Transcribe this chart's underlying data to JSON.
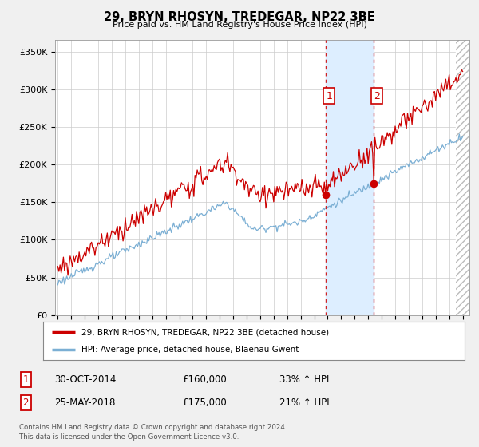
{
  "title": "29, BRYN RHOSYN, TREDEGAR, NP22 3BE",
  "subtitle": "Price paid vs. HM Land Registry's House Price Index (HPI)",
  "ylabel_ticks": [
    "£0",
    "£50K",
    "£100K",
    "£150K",
    "£200K",
    "£250K",
    "£300K",
    "£350K"
  ],
  "ytick_values": [
    0,
    50000,
    100000,
    150000,
    200000,
    250000,
    300000,
    350000
  ],
  "ylim": [
    0,
    365000
  ],
  "xlim_start": 1994.8,
  "xlim_end": 2025.5,
  "legend_line1": "29, BRYN RHOSYN, TREDEGAR, NP22 3BE (detached house)",
  "legend_line2": "HPI: Average price, detached house, Blaenau Gwent",
  "line1_color": "#cc0000",
  "line2_color": "#7bafd4",
  "shade_color": "#ddeeff",
  "transaction1_date": 2014.83,
  "transaction2_date": 2018.38,
  "transaction1_price": 160000,
  "transaction2_price": 175000,
  "footer": "Contains HM Land Registry data © Crown copyright and database right 2024.\nThis data is licensed under the Open Government Licence v3.0.",
  "background_color": "#f0f0f0",
  "plot_bg_color": "#ffffff",
  "hatch_start": 2024.5
}
